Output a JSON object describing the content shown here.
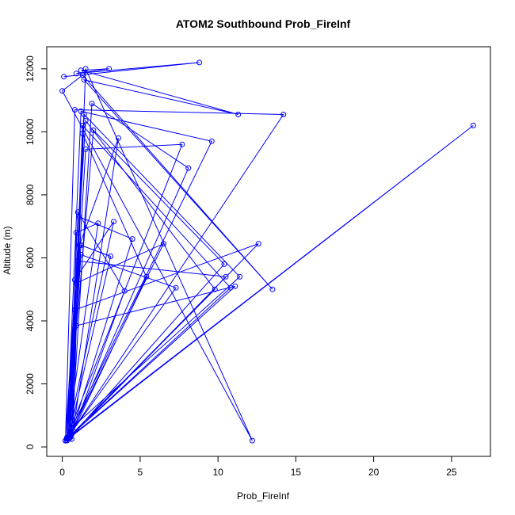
{
  "chart_data": {
    "type": "line",
    "title": "ATOM2 Southbound Prob_FireInf",
    "xlabel": "Prob_FireInf",
    "ylabel": "Altitude (m)",
    "xlim": [
      -1.0,
      27.5
    ],
    "ylim": [
      -300,
      12700
    ],
    "xticks": [
      0,
      5,
      10,
      15,
      20,
      25
    ],
    "yticks": [
      0,
      2000,
      4000,
      6000,
      8000,
      10000,
      12000
    ],
    "grid": false,
    "legend": "none",
    "line_color": "#0000ff",
    "marker": "open-circle",
    "series": [
      {
        "x": [
          0.1,
          8.8,
          0.9,
          3.0,
          1.2,
          11.3,
          1.4,
          13.5,
          1.3,
          0.0,
          12.2,
          1.5,
          0.6,
          11.4,
          1.4,
          0.6,
          10.8,
          1.3,
          0.5,
          10.4,
          2.0,
          0.3,
          14.2,
          0.8,
          0.2,
          9.6,
          1.2,
          0.3,
          7.7,
          1.5,
          0.4,
          8.1,
          1.9,
          0.6,
          5.4,
          1.3,
          0.5,
          4.5,
          1.1,
          0.7,
          4.0,
          1.0,
          0.4,
          3.1,
          1.2,
          0.3,
          2.3,
          0.9,
          0.6,
          3.6,
          1.1,
          0.5,
          10.5,
          1.0,
          0.2,
          12.6,
          0.8,
          0.4,
          11.1,
          0.9,
          0.3,
          9.8,
          1.5,
          0.2,
          7.3,
          1.2,
          0.4,
          6.5,
          0.9,
          0.3,
          3.3,
          0.8,
          0.5,
          26.4,
          0.3
        ],
        "y": [
          11750,
          12200,
          11850,
          12000,
          11950,
          10550,
          11650,
          5000,
          11800,
          11300,
          200,
          12000,
          600,
          5400,
          10550,
          400,
          5050,
          10200,
          300,
          5800,
          10050,
          250,
          10550,
          10700,
          200,
          9700,
          10650,
          300,
          9600,
          9450,
          250,
          8850,
          10900,
          400,
          5400,
          9950,
          300,
          6600,
          7300,
          500,
          4950,
          7450,
          300,
          6050,
          6400,
          200,
          7100,
          6800,
          250,
          9800,
          6400,
          300,
          5400,
          5900,
          200,
          6450,
          4350,
          300,
          5100,
          3850,
          250,
          5000,
          10350,
          200,
          5050,
          6100,
          300,
          6450,
          5200,
          250,
          7150,
          5300,
          300,
          10200,
          250
        ]
      }
    ]
  }
}
